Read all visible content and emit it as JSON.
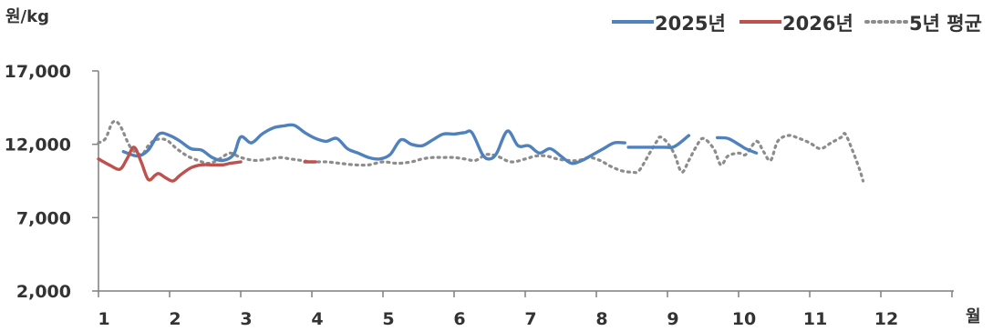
{
  "chart_data": {
    "type": "line",
    "ylabel": "원/kg",
    "xlabel": "월",
    "ylim": [
      2000,
      17000
    ],
    "xlim": [
      1,
      13
    ],
    "yticks": [
      {
        "value": 2000,
        "label": "2,000"
      },
      {
        "value": 7000,
        "label": "7,000"
      },
      {
        "value": 12000,
        "label": "12,000"
      },
      {
        "value": 17000,
        "label": "17,000"
      }
    ],
    "xticks": [
      {
        "value": 1,
        "label": "1"
      },
      {
        "value": 2,
        "label": "2"
      },
      {
        "value": 3,
        "label": "3"
      },
      {
        "value": 4,
        "label": "4"
      },
      {
        "value": 5,
        "label": "5"
      },
      {
        "value": 6,
        "label": "6"
      },
      {
        "value": 7,
        "label": "7"
      },
      {
        "value": 8,
        "label": "8"
      },
      {
        "value": 9,
        "label": "9"
      },
      {
        "value": 10,
        "label": "10"
      },
      {
        "value": 11,
        "label": "11"
      },
      {
        "value": 12,
        "label": "12"
      }
    ],
    "legend_position": "top-right",
    "grid": false,
    "series": [
      {
        "name": "2025년",
        "color": "#4f81bd",
        "style": "solid",
        "segments": [
          [
            [
              1.35,
              11500
            ],
            [
              1.55,
              11200
            ],
            [
              1.7,
              11600
            ],
            [
              1.85,
              12700
            ],
            [
              2.0,
              12600
            ],
            [
              2.15,
              12200
            ],
            [
              2.3,
              11700
            ],
            [
              2.45,
              11600
            ],
            [
              2.6,
              11100
            ],
            [
              2.75,
              10900
            ],
            [
              2.9,
              11300
            ],
            [
              3.0,
              12500
            ],
            [
              3.15,
              12100
            ],
            [
              3.3,
              12700
            ],
            [
              3.45,
              13100
            ],
            [
              3.6,
              13250
            ],
            [
              3.75,
              13300
            ],
            [
              3.9,
              12800
            ],
            [
              4.05,
              12400
            ],
            [
              4.2,
              12200
            ],
            [
              4.35,
              12400
            ],
            [
              4.5,
              11700
            ],
            [
              4.65,
              11400
            ],
            [
              4.8,
              11100
            ],
            [
              4.95,
              11000
            ],
            [
              5.1,
              11300
            ],
            [
              5.25,
              12300
            ],
            [
              5.4,
              12000
            ],
            [
              5.55,
              11900
            ],
            [
              5.7,
              12300
            ],
            [
              5.85,
              12700
            ],
            [
              6.0,
              12700
            ],
            [
              6.15,
              12800
            ],
            [
              6.25,
              12800
            ],
            [
              6.4,
              11300
            ],
            [
              6.5,
              11000
            ],
            [
              6.6,
              11400
            ],
            [
              6.75,
              12900
            ],
            [
              6.9,
              11900
            ],
            [
              7.05,
              11900
            ],
            [
              7.2,
              11400
            ],
            [
              7.35,
              11700
            ],
            [
              7.5,
              11200
            ],
            [
              7.65,
              10700
            ],
            [
              7.8,
              10900
            ],
            [
              7.95,
              11300
            ],
            [
              8.1,
              11700
            ],
            [
              8.25,
              12100
            ],
            [
              8.4,
              12100
            ]
          ],
          [
            [
              8.45,
              11800
            ],
            [
              8.95,
              11800
            ],
            [
              9.1,
              11850
            ],
            [
              9.3,
              12600
            ]
          ],
          [
            [
              9.7,
              12450
            ],
            [
              9.85,
              12400
            ],
            [
              10.0,
              12000
            ],
            [
              10.1,
              11700
            ],
            [
              10.25,
              11400
            ]
          ]
        ]
      },
      {
        "name": "2026년",
        "color": "#c0504d",
        "style": "solid",
        "segments": [
          [
            [
              1.0,
              11000
            ],
            [
              1.15,
              10600
            ],
            [
              1.3,
              10300
            ],
            [
              1.4,
              11000
            ],
            [
              1.5,
              11800
            ],
            [
              1.6,
              10800
            ],
            [
              1.7,
              9600
            ],
            [
              1.8,
              9900
            ],
            [
              1.85,
              10000
            ],
            [
              1.95,
              9700
            ],
            [
              2.05,
              9500
            ],
            [
              2.15,
              9900
            ],
            [
              2.3,
              10400
            ],
            [
              2.45,
              10600
            ],
            [
              2.6,
              10600
            ],
            [
              2.75,
              10600
            ],
            [
              2.85,
              10700
            ],
            [
              3.0,
              10800
            ]
          ],
          [
            [
              3.9,
              10800
            ],
            [
              4.05,
              10800
            ]
          ]
        ]
      },
      {
        "name": "5년 평균",
        "color": "#8c8c8c",
        "style": "dotted",
        "segments": [
          [
            [
              1.0,
              12100
            ],
            [
              1.1,
              12400
            ],
            [
              1.2,
              13500
            ],
            [
              1.3,
              13300
            ],
            [
              1.45,
              11800
            ],
            [
              1.6,
              11300
            ],
            [
              1.7,
              11900
            ],
            [
              1.8,
              12300
            ],
            [
              1.95,
              12300
            ],
            [
              2.1,
              11700
            ],
            [
              2.25,
              11200
            ],
            [
              2.4,
              10900
            ],
            [
              2.55,
              10700
            ],
            [
              2.7,
              11000
            ],
            [
              2.85,
              11400
            ],
            [
              3.0,
              11100
            ],
            [
              3.2,
              10900
            ],
            [
              3.4,
              11000
            ],
            [
              3.55,
              11100
            ],
            [
              3.7,
              11000
            ],
            [
              3.85,
              10900
            ],
            [
              4.0,
              10800
            ],
            [
              4.2,
              10800
            ],
            [
              4.4,
              10700
            ],
            [
              4.6,
              10600
            ],
            [
              4.8,
              10600
            ],
            [
              5.0,
              10800
            ],
            [
              5.2,
              10700
            ],
            [
              5.4,
              10800
            ],
            [
              5.55,
              11000
            ],
            [
              5.7,
              11100
            ],
            [
              5.85,
              11100
            ],
            [
              6.0,
              11100
            ],
            [
              6.15,
              11000
            ],
            [
              6.3,
              10900
            ],
            [
              6.45,
              11300
            ],
            [
              6.6,
              11200
            ],
            [
              6.8,
              10800
            ],
            [
              7.0,
              11000
            ],
            [
              7.15,
              11200
            ],
            [
              7.3,
              11200
            ],
            [
              7.45,
              11000
            ],
            [
              7.6,
              10900
            ],
            [
              7.75,
              10900
            ],
            [
              7.9,
              11100
            ],
            [
              8.05,
              10900
            ],
            [
              8.2,
              10500
            ],
            [
              8.35,
              10200
            ],
            [
              8.5,
              10100
            ],
            [
              8.6,
              10200
            ],
            [
              8.75,
              11400
            ],
            [
              8.85,
              12200
            ],
            [
              8.9,
              12500
            ],
            [
              9.0,
              12100
            ],
            [
              9.1,
              11300
            ],
            [
              9.2,
              10100
            ],
            [
              9.3,
              10900
            ],
            [
              9.4,
              11800
            ],
            [
              9.5,
              12400
            ],
            [
              9.65,
              11700
            ],
            [
              9.75,
              10600
            ],
            [
              9.85,
              11200
            ],
            [
              10.0,
              11400
            ],
            [
              10.1,
              11300
            ],
            [
              10.25,
              12200
            ],
            [
              10.35,
              11500
            ],
            [
              10.45,
              10900
            ],
            [
              10.55,
              12200
            ],
            [
              10.7,
              12600
            ],
            [
              10.85,
              12400
            ],
            [
              11.0,
              12100
            ],
            [
              11.15,
              11700
            ],
            [
              11.3,
              12100
            ],
            [
              11.45,
              12500
            ],
            [
              11.5,
              12700
            ],
            [
              11.6,
              11600
            ],
            [
              11.7,
              10300
            ],
            [
              11.75,
              9500
            ]
          ]
        ]
      }
    ]
  }
}
